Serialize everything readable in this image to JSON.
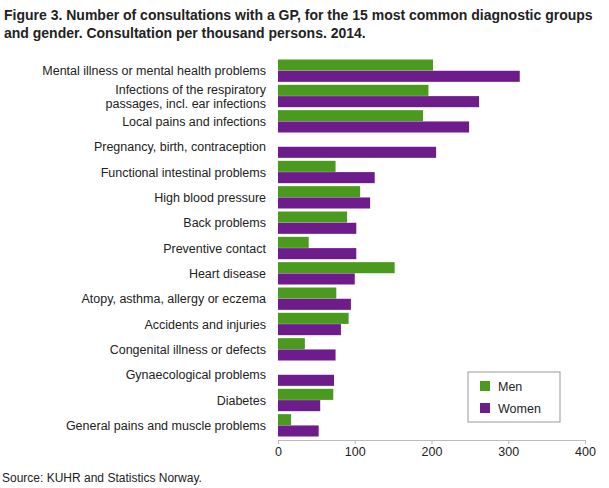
{
  "chart_data": {
    "type": "bar",
    "orientation": "horizontal",
    "title": "Figure 3. Number of consultations with a GP, for the 15 most common diagnostic groups and gender. Consultation per thousand persons. 2014.",
    "source": "Source: KUHR and Statistics Norway.",
    "categories": [
      "Mental illness or mental health problems",
      "Infections of the respiratory\npassages, incl. ear infections",
      "Local pains and infections",
      "Pregnancy, birth, contraception",
      "Functional intestinal problems",
      "High blood pressure",
      "Back problems",
      "Preventive contact",
      "Heart disease",
      "Atopy, asthma, allergy or eczema",
      "Accidents and injuries",
      "Congenital illness or defects",
      "Gynaecological problems",
      "Diabetes",
      "General pains and muscle problems"
    ],
    "series": [
      {
        "name": "Men",
        "color": "#4a9a1e",
        "values": [
          202,
          196,
          189,
          null,
          75,
          107,
          90,
          40,
          152,
          76,
          92,
          35,
          null,
          72,
          17
        ]
      },
      {
        "name": "Women",
        "color": "#6e1c8c",
        "values": [
          315,
          262,
          249,
          206,
          126,
          120,
          102,
          102,
          100,
          95,
          82,
          75,
          73,
          55,
          53
        ]
      }
    ],
    "xlim": [
      0,
      400
    ],
    "xticks": [
      0,
      100,
      200,
      300,
      400
    ],
    "grid": false,
    "legend": "lower right"
  }
}
